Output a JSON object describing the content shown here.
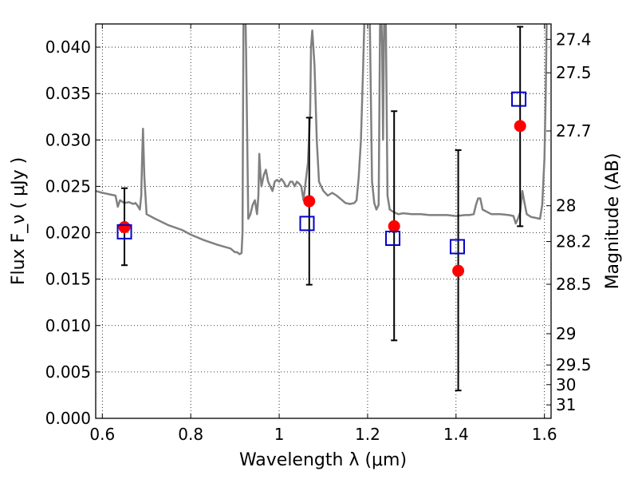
{
  "chart_data": {
    "type": "scatter",
    "xlabel": "Wavelength  λ (μm)",
    "ylabel": "Flux  F_ν  ( μJy )",
    "ylabel_right": "Magnitude (AB)",
    "xlim": [
      0.585,
      1.615
    ],
    "ylim": [
      0.0,
      0.0425
    ],
    "x_ticks": [
      {
        "value": 0.6,
        "label": "0.6"
      },
      {
        "value": 0.8,
        "label": "0.8"
      },
      {
        "value": 1.0,
        "label": "1"
      },
      {
        "value": 1.2,
        "label": "1.2"
      },
      {
        "value": 1.4,
        "label": "1.4"
      },
      {
        "value": 1.6,
        "label": "1.6"
      }
    ],
    "y_ticks": [
      {
        "value": 0.0,
        "label": "0.000"
      },
      {
        "value": 0.005,
        "label": "0.005"
      },
      {
        "value": 0.01,
        "label": "0.010"
      },
      {
        "value": 0.015,
        "label": "0.015"
      },
      {
        "value": 0.02,
        "label": "0.020"
      },
      {
        "value": 0.025,
        "label": "0.025"
      },
      {
        "value": 0.03,
        "label": "0.030"
      },
      {
        "value": 0.035,
        "label": "0.035"
      },
      {
        "value": 0.04,
        "label": "0.040"
      }
    ],
    "right_ticks": [
      {
        "flux": 0.04084,
        "label": "27.4"
      },
      {
        "flux": 0.03724,
        "label": "27.5"
      },
      {
        "flux": 0.03097,
        "label": "27.7"
      },
      {
        "flux": 0.02291,
        "label": "28"
      },
      {
        "flux": 0.01905,
        "label": "28.2"
      },
      {
        "flux": 0.01445,
        "label": "28.5"
      },
      {
        "flux": 0.00912,
        "label": "29"
      },
      {
        "flux": 0.00575,
        "label": "29.5"
      },
      {
        "flux": 0.00363,
        "label": "30"
      },
      {
        "flux": 0.00145,
        "label": "31"
      }
    ],
    "grid": true,
    "colors": {
      "model": "#808080",
      "observed": "#ff0000",
      "model_photometry": "#0000cc",
      "errorbar": "#000000"
    },
    "series": [
      {
        "kind": "line",
        "x": [
          0.585,
          0.6,
          0.61,
          0.62,
          0.63,
          0.635,
          0.64,
          0.65,
          0.66,
          0.67,
          0.675,
          0.68,
          0.685,
          0.688,
          0.69,
          0.692,
          0.695,
          0.7,
          0.72,
          0.75,
          0.78,
          0.8,
          0.83,
          0.86,
          0.89,
          0.9,
          0.905,
          0.91,
          0.915,
          0.917,
          0.918,
          0.92,
          0.922,
          0.925,
          0.93,
          0.935,
          0.94,
          0.945,
          0.95,
          0.953,
          0.955,
          0.958,
          0.96,
          0.965,
          0.97,
          0.975,
          0.98,
          0.985,
          0.99,
          0.995,
          1.0,
          1.005,
          1.01,
          1.015,
          1.02,
          1.025,
          1.03,
          1.035,
          1.04,
          1.045,
          1.05,
          1.055,
          1.06,
          1.065,
          1.07,
          1.072,
          1.075,
          1.08,
          1.085,
          1.09,
          1.1,
          1.11,
          1.12,
          1.13,
          1.14,
          1.15,
          1.16,
          1.17,
          1.175,
          1.18,
          1.185,
          1.19,
          1.195,
          1.2,
          1.205,
          1.21,
          1.215,
          1.22,
          1.225,
          1.228,
          1.23,
          1.233,
          1.235,
          1.238,
          1.24,
          1.245,
          1.25,
          1.26,
          1.27,
          1.28,
          1.3,
          1.32,
          1.34,
          1.36,
          1.38,
          1.4,
          1.42,
          1.43,
          1.44,
          1.445,
          1.45,
          1.455,
          1.46,
          1.48,
          1.5,
          1.52,
          1.53,
          1.535,
          1.54,
          1.545,
          1.55,
          1.555,
          1.56,
          1.57,
          1.58,
          1.59,
          1.595,
          1.6,
          1.603,
          1.605,
          1.61,
          1.615
        ],
        "y": [
          0.0245,
          0.0243,
          0.0242,
          0.0241,
          0.024,
          0.0228,
          0.0235,
          0.0232,
          0.0233,
          0.0231,
          0.0232,
          0.0229,
          0.0225,
          0.024,
          0.028,
          0.0312,
          0.026,
          0.022,
          0.0215,
          0.0208,
          0.0203,
          0.0198,
          0.0192,
          0.0187,
          0.0183,
          0.0179,
          0.0179,
          0.0177,
          0.0178,
          0.02,
          0.03,
          0.05,
          0.048,
          0.04,
          0.0215,
          0.022,
          0.023,
          0.0235,
          0.022,
          0.024,
          0.0285,
          0.026,
          0.025,
          0.0262,
          0.0268,
          0.0255,
          0.025,
          0.0245,
          0.0255,
          0.0257,
          0.0255,
          0.0258,
          0.0255,
          0.025,
          0.025,
          0.0255,
          0.0255,
          0.025,
          0.0255,
          0.0253,
          0.025,
          0.0235,
          0.0255,
          0.0275,
          0.033,
          0.04,
          0.0418,
          0.038,
          0.03,
          0.0255,
          0.0245,
          0.024,
          0.0243,
          0.024,
          0.0236,
          0.0232,
          0.0231,
          0.0232,
          0.0235,
          0.026,
          0.03,
          0.038,
          0.047,
          0.05,
          0.043,
          0.0255,
          0.0232,
          0.0225,
          0.023,
          0.042,
          0.045,
          0.04,
          0.03,
          0.046,
          0.049,
          0.024,
          0.0225,
          0.0222,
          0.022,
          0.0221,
          0.022,
          0.022,
          0.0219,
          0.0219,
          0.0219,
          0.0218,
          0.0219,
          0.0219,
          0.022,
          0.023,
          0.0237,
          0.0237,
          0.0225,
          0.022,
          0.022,
          0.0219,
          0.0218,
          0.021,
          0.0215,
          0.0222,
          0.0245,
          0.0232,
          0.022,
          0.0217,
          0.0216,
          0.0215,
          0.023,
          0.028,
          0.035,
          0.043,
          0.045,
          0.045
        ]
      },
      {
        "kind": "points",
        "x": [
          0.65,
          1.068,
          1.26,
          1.405,
          1.545
        ],
        "y": [
          0.0206,
          0.0234,
          0.0207,
          0.0159,
          0.0315
        ],
        "yerr_low": [
          0.0165,
          0.0144,
          0.0084,
          0.003,
          0.0207
        ],
        "yerr_high": [
          0.0248,
          0.0324,
          0.0331,
          0.0289,
          0.0422
        ]
      },
      {
        "kind": "squares",
        "x": [
          0.65,
          1.063,
          1.257,
          1.403,
          1.542
        ],
        "y": [
          0.0201,
          0.021,
          0.0194,
          0.0185,
          0.0344
        ]
      }
    ]
  }
}
